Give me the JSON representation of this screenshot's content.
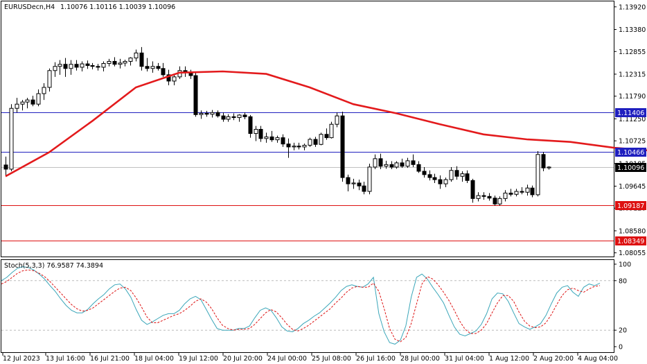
{
  "header": {
    "symbol": "EURUSDecn,H4",
    "ohlc": "1.10076 1.10116 1.10039 1.10096"
  },
  "stoch_header": "Stoch(5,3,3) 76.9587 74.3894",
  "colors": {
    "candle": "#000000",
    "ma": "#e31a1c",
    "level_blue": "#1f1fbf",
    "level_red": "#d11",
    "stoch_main": "#3aa6b9",
    "stoch_signal": "#d11",
    "grid": "#bbbbbb"
  },
  "chart_data": {
    "type": "candlestick",
    "symbol": "EURUSDecn",
    "timeframe": "H4",
    "price_axis": {
      "ticks": [
        "1.13920",
        "1.13380",
        "1.12855",
        "1.12315",
        "1.11790",
        "1.11250",
        "1.10725",
        "1.10185",
        "1.09645",
        "1.09120",
        "1.08580",
        "1.08055"
      ],
      "ylim": [
        1.08,
        1.14
      ]
    },
    "time_axis": {
      "labels": [
        "12 Jul 2023",
        "13 Jul 16:00",
        "16 Jul 21:00",
        "18 Jul 04:00",
        "19 Jul 12:00",
        "20 Jul 20:00",
        "24 Jul 00:00",
        "25 Jul 08:00",
        "26 Jul 16:00",
        "28 Jul 00:00",
        "31 Jul 04:00",
        "1 Aug 12:00",
        "2 Aug 20:00",
        "4 Aug 04:00"
      ]
    },
    "levels": [
      {
        "value": 1.11406,
        "label": "1.11406",
        "color": "blue"
      },
      {
        "value": 1.10466,
        "label": "1.10466",
        "color": "blue"
      },
      {
        "value": 1.10096,
        "label": "1.10096",
        "color": "black",
        "current": true
      },
      {
        "value": 1.09187,
        "label": "1.09187",
        "color": "red"
      },
      {
        "value": 1.08349,
        "label": "1.08349",
        "color": "red"
      }
    ],
    "candles": [
      [
        1.1015,
        1.1035,
        1.099,
        1.1005
      ],
      [
        1.1005,
        1.116,
        1.1,
        1.115
      ],
      [
        1.115,
        1.1175,
        1.114,
        1.116
      ],
      [
        1.116,
        1.117,
        1.1145,
        1.1165
      ],
      [
        1.1165,
        1.1175,
        1.115,
        1.117
      ],
      [
        1.117,
        1.118,
        1.1155,
        1.116
      ],
      [
        1.116,
        1.1195,
        1.1155,
        1.1185
      ],
      [
        1.1185,
        1.121,
        1.117,
        1.12
      ],
      [
        1.12,
        1.1245,
        1.119,
        1.124
      ],
      [
        1.124,
        1.126,
        1.1225,
        1.125
      ],
      [
        1.125,
        1.1265,
        1.123,
        1.1255
      ],
      [
        1.1255,
        1.127,
        1.1225,
        1.1245
      ],
      [
        1.1245,
        1.1265,
        1.123,
        1.1255
      ],
      [
        1.1255,
        1.1265,
        1.124,
        1.1248
      ],
      [
        1.1248,
        1.1262,
        1.1238,
        1.1256
      ],
      [
        1.1256,
        1.1264,
        1.1244,
        1.1252
      ],
      [
        1.1252,
        1.1258,
        1.1243,
        1.125
      ],
      [
        1.125,
        1.1256,
        1.124,
        1.1248
      ],
      [
        1.1248,
        1.1262,
        1.1238,
        1.1257
      ],
      [
        1.1257,
        1.1268,
        1.125,
        1.1262
      ],
      [
        1.1262,
        1.1272,
        1.125,
        1.1255
      ],
      [
        1.1255,
        1.1268,
        1.1245,
        1.1258
      ],
      [
        1.1258,
        1.1266,
        1.125,
        1.1262
      ],
      [
        1.1262,
        1.1272,
        1.1252,
        1.127
      ],
      [
        1.127,
        1.129,
        1.1262,
        1.1282
      ],
      [
        1.1282,
        1.1296,
        1.124,
        1.125
      ],
      [
        1.125,
        1.127,
        1.1238,
        1.1245
      ],
      [
        1.1245,
        1.1262,
        1.1235,
        1.125
      ],
      [
        1.125,
        1.1258,
        1.124,
        1.1245
      ],
      [
        1.1245,
        1.1258,
        1.1225,
        1.123
      ],
      [
        1.123,
        1.1242,
        1.1205,
        1.1215
      ],
      [
        1.1215,
        1.1232,
        1.1205,
        1.1225
      ],
      [
        1.1225,
        1.125,
        1.122,
        1.124
      ],
      [
        1.124,
        1.125,
        1.1225,
        1.1235
      ],
      [
        1.1235,
        1.1242,
        1.122,
        1.1228
      ],
      [
        1.1228,
        1.1236,
        1.113,
        1.1135
      ],
      [
        1.1135,
        1.1145,
        1.1125,
        1.1138
      ],
      [
        1.1138,
        1.1144,
        1.113,
        1.1136
      ],
      [
        1.1136,
        1.1146,
        1.1128,
        1.114
      ],
      [
        1.114,
        1.1145,
        1.1128,
        1.1132
      ],
      [
        1.1132,
        1.114,
        1.1118,
        1.1124
      ],
      [
        1.1124,
        1.1136,
        1.1118,
        1.113
      ],
      [
        1.113,
        1.1138,
        1.1122,
        1.1128
      ],
      [
        1.1128,
        1.1136,
        1.1118,
        1.1134
      ],
      [
        1.1134,
        1.114,
        1.1124,
        1.113
      ],
      [
        1.113,
        1.1134,
        1.108,
        1.109
      ],
      [
        1.109,
        1.1108,
        1.1072,
        1.11
      ],
      [
        1.11,
        1.1108,
        1.107,
        1.1078
      ],
      [
        1.1078,
        1.1092,
        1.1068,
        1.1082
      ],
      [
        1.1082,
        1.1096,
        1.107,
        1.1075
      ],
      [
        1.1075,
        1.1085,
        1.1068,
        1.108
      ],
      [
        1.108,
        1.1088,
        1.1058,
        1.1065
      ],
      [
        1.1065,
        1.1078,
        1.1032,
        1.1058
      ],
      [
        1.1058,
        1.1068,
        1.105,
        1.106
      ],
      [
        1.106,
        1.1068,
        1.1052,
        1.1058
      ],
      [
        1.1058,
        1.1066,
        1.105,
        1.1062
      ],
      [
        1.1062,
        1.108,
        1.1058,
        1.1076
      ],
      [
        1.1076,
        1.1082,
        1.1058,
        1.1064
      ],
      [
        1.1064,
        1.1092,
        1.1062,
        1.1088
      ],
      [
        1.1088,
        1.1102,
        1.1075,
        1.108
      ],
      [
        1.108,
        1.1118,
        1.1078,
        1.1112
      ],
      [
        1.1112,
        1.114,
        1.1105,
        1.1132
      ],
      [
        1.1132,
        1.1142,
        1.0975,
        1.0985
      ],
      [
        1.0985,
        1.0992,
        1.0952,
        1.097
      ],
      [
        1.097,
        1.0982,
        1.0958,
        1.0972
      ],
      [
        1.0972,
        1.098,
        1.0955,
        1.0965
      ],
      [
        1.0965,
        1.0975,
        1.0945,
        1.0952
      ],
      [
        1.0952,
        1.1018,
        1.0945,
        1.101
      ],
      [
        1.101,
        1.104,
        1.1005,
        1.103
      ],
      [
        1.103,
        1.1042,
        1.1005,
        1.1012
      ],
      [
        1.1012,
        1.1025,
        1.1006,
        1.1016
      ],
      [
        1.1016,
        1.1024,
        1.1005,
        1.101
      ],
      [
        1.101,
        1.1024,
        1.1006,
        1.102
      ],
      [
        1.102,
        1.103,
        1.1008,
        1.1012
      ],
      [
        1.1012,
        1.1032,
        1.1008,
        1.1025
      ],
      [
        1.1025,
        1.104,
        1.101,
        1.1016
      ],
      [
        1.1016,
        1.1024,
        1.0996,
        1.1
      ],
      [
        1.1,
        1.101,
        1.0985,
        1.0992
      ],
      [
        1.0992,
        1.1002,
        1.0978,
        1.0985
      ],
      [
        1.0985,
        1.0994,
        1.0972,
        1.098
      ],
      [
        1.098,
        1.099,
        1.0958,
        1.097
      ],
      [
        1.097,
        1.0985,
        1.0962,
        1.098
      ],
      [
        1.098,
        1.101,
        1.0975,
        1.1002
      ],
      [
        1.1002,
        1.1012,
        1.098,
        1.0988
      ],
      [
        1.0988,
        1.1,
        1.0975,
        1.0994
      ],
      [
        1.0994,
        1.1002,
        1.0972,
        1.0978
      ],
      [
        1.0978,
        1.0982,
        1.0925,
        1.0935
      ],
      [
        1.0935,
        1.095,
        1.0928,
        1.0942
      ],
      [
        1.0942,
        1.095,
        1.0932,
        1.094
      ],
      [
        1.094,
        1.0948,
        1.093,
        1.0936
      ],
      [
        1.0936,
        1.0942,
        1.0918,
        1.0922
      ],
      [
        1.0922,
        1.094,
        1.0918,
        1.0935
      ],
      [
        1.0935,
        1.0955,
        1.0928,
        1.0948
      ],
      [
        1.0948,
        1.0958,
        1.094,
        1.0945
      ],
      [
        1.0945,
        1.0958,
        1.094,
        1.0952
      ],
      [
        1.0952,
        1.0962,
        1.0945,
        1.095
      ],
      [
        1.095,
        1.0968,
        1.0942,
        1.096
      ],
      [
        1.096,
        1.0966,
        1.0938,
        1.0944
      ],
      [
        1.0944,
        1.1048,
        1.094,
        1.104
      ],
      [
        1.104,
        1.1046,
        1.1,
        1.1008
      ],
      [
        1.1008,
        1.1012,
        1.1004,
        1.101
      ]
    ],
    "ma": [
      [
        0,
        1.0988
      ],
      [
        8,
        1.1045
      ],
      [
        16,
        1.112
      ],
      [
        24,
        1.12
      ],
      [
        32,
        1.1235
      ],
      [
        40,
        1.1238
      ],
      [
        48,
        1.1232
      ],
      [
        56,
        1.12
      ],
      [
        64,
        1.116
      ],
      [
        72,
        1.1138
      ],
      [
        80,
        1.1112
      ],
      [
        88,
        1.1088
      ],
      [
        96,
        1.1076
      ],
      [
        104,
        1.107
      ],
      [
        112,
        1.1056
      ],
      [
        120,
        1.1048
      ],
      [
        130,
        1.104
      ],
      [
        140,
        1.1032
      ],
      [
        150,
        1.102
      ],
      [
        160,
        1.1
      ],
      [
        170,
        1.0995
      ],
      [
        180,
        1.0992
      ],
      [
        190,
        1.0983
      ],
      [
        200,
        1.0972
      ],
      [
        210,
        1.096
      ],
      [
        220,
        1.0952
      ],
      [
        230,
        1.0945
      ],
      [
        240,
        1.094
      ],
      [
        250,
        1.0945
      ]
    ],
    "stochastic": {
      "label": "Stoch(5,3,3)",
      "main_value": "76.9587",
      "signal_value": "74.3894",
      "levels": [
        80,
        20
      ],
      "ylim": [
        0,
        100
      ],
      "y_ticks": [
        "100",
        "80",
        "20",
        "0"
      ],
      "main": [
        80,
        84,
        90,
        95,
        97,
        96,
        93,
        88,
        82,
        74,
        67,
        58,
        50,
        44,
        41,
        41,
        45,
        52,
        58,
        63,
        70,
        75,
        76,
        70,
        60,
        45,
        32,
        27,
        30,
        34,
        38,
        40,
        40,
        44,
        52,
        58,
        61,
        57,
        45,
        33,
        22,
        20,
        20,
        20,
        22,
        22,
        25,
        35,
        44,
        47,
        44,
        35,
        24,
        19,
        18,
        22,
        28,
        32,
        37,
        41,
        47,
        53,
        60,
        68,
        73,
        75,
        73,
        72,
        76,
        84,
        40,
        18,
        5,
        3,
        8,
        25,
        60,
        84,
        88,
        82,
        72,
        63,
        53,
        38,
        24,
        15,
        13,
        16,
        19,
        27,
        40,
        58,
        65,
        64,
        55,
        41,
        28,
        24,
        21,
        24,
        28,
        38,
        52,
        65,
        72,
        74,
        66,
        61,
        72,
        76,
        74,
        77
      ],
      "signal": [
        76,
        79,
        84,
        89,
        92,
        93,
        92,
        89,
        85,
        79,
        72,
        65,
        58,
        51,
        46,
        43,
        44,
        47,
        52,
        57,
        62,
        67,
        71,
        72,
        68,
        59,
        48,
        36,
        29,
        29,
        32,
        35,
        38,
        40,
        44,
        49,
        55,
        58,
        54,
        46,
        35,
        26,
        22,
        20,
        21,
        21,
        22,
        27,
        34,
        41,
        45,
        42,
        35,
        27,
        21,
        19,
        22,
        26,
        31,
        36,
        41,
        46,
        53,
        59,
        66,
        71,
        73,
        72,
        72,
        77,
        67,
        46,
        22,
        9,
        6,
        11,
        28,
        52,
        76,
        85,
        82,
        75,
        66,
        56,
        44,
        31,
        21,
        16,
        16,
        20,
        28,
        41,
        53,
        62,
        62,
        55,
        42,
        31,
        25,
        23,
        24,
        29,
        39,
        51,
        62,
        69,
        71,
        68,
        66,
        70,
        73,
        74
      ]
    }
  }
}
